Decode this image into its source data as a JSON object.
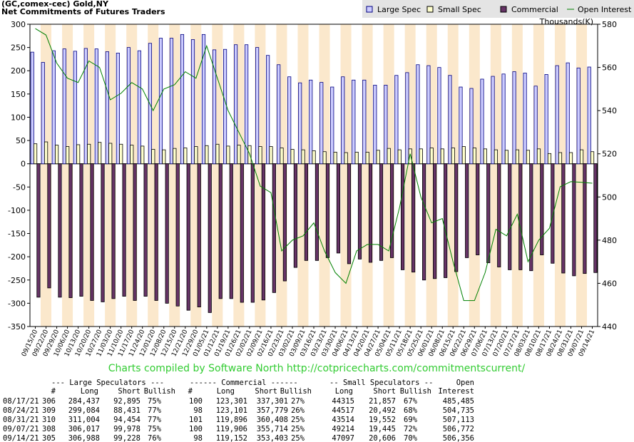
{
  "chart_data": {
    "type": "bar",
    "title": "(GC,comex-cec) Gold,NY",
    "subtitle": "Net Commitments of Futures Traders",
    "y2_label": "Thousands(K)",
    "footer": "Charts compiled by Software North  http://cotpricecharts.com/commitmentscurrent/",
    "categories": [
      "09/15/20",
      "09/22/20",
      "09/29/20",
      "10/06/20",
      "10/13/20",
      "10/20/20",
      "10/27/20",
      "11/03/20",
      "11/10/20",
      "11/17/20",
      "11/24/20",
      "12/01/20",
      "12/08/20",
      "12/15/20",
      "12/21/20",
      "12/29/20",
      "01/05/21",
      "01/12/21",
      "01/19/21",
      "01/26/21",
      "02/02/21",
      "02/09/21",
      "02/16/21",
      "02/23/21",
      "03/02/21",
      "03/09/21",
      "03/16/21",
      "03/23/21",
      "03/30/21",
      "04/06/21",
      "04/13/21",
      "04/20/21",
      "04/27/21",
      "05/04/21",
      "05/11/21",
      "05/18/21",
      "05/25/21",
      "06/01/21",
      "06/08/21",
      "06/15/21",
      "06/22/21",
      "06/29/21",
      "07/06/21",
      "07/13/21",
      "07/20/21",
      "07/27/21",
      "08/03/21",
      "08/10/21",
      "08/17/21",
      "08/24/21",
      "08/31/21",
      "09/07/21",
      "09/14/21"
    ],
    "series": [
      {
        "name": "Large Spec",
        "color": "#ccccff",
        "values": [
          240,
          218,
          243,
          247,
          242,
          248,
          247,
          241,
          238,
          250,
          243,
          259,
          270,
          270,
          278,
          267,
          278,
          245,
          246,
          256,
          256,
          250,
          233,
          213,
          187,
          174,
          180,
          175,
          165,
          187,
          180,
          180,
          169,
          169,
          190,
          196,
          213,
          211,
          207,
          190,
          165,
          162,
          182,
          188,
          193,
          198,
          195,
          167,
          192,
          211,
          217,
          206,
          208
        ]
      },
      {
        "name": "Small Spec",
        "color": "#ffffcc",
        "values": [
          43,
          47,
          40,
          37,
          41,
          42,
          46,
          44,
          42,
          40,
          38,
          31,
          30,
          33,
          34,
          37,
          39,
          42,
          38,
          40,
          39,
          37,
          37,
          34,
          31,
          30,
          28,
          26,
          25,
          24,
          25,
          25,
          29,
          33,
          30,
          32,
          32,
          34,
          32,
          34,
          37,
          34,
          32,
          30,
          29,
          30,
          29,
          32,
          22,
          24,
          24,
          30,
          26
        ]
      },
      {
        "name": "Commercial",
        "color": "#663366",
        "values": [
          -287,
          -267,
          -287,
          -288,
          -285,
          -294,
          -297,
          -290,
          -285,
          -294,
          -285,
          -294,
          -300,
          -306,
          -315,
          -308,
          -320,
          -290,
          -290,
          -298,
          -298,
          -293,
          -277,
          -252,
          -223,
          -208,
          -208,
          -202,
          -192,
          -215,
          -205,
          -212,
          -208,
          -202,
          -228,
          -233,
          -250,
          -247,
          -245,
          -232,
          -202,
          -196,
          -213,
          -222,
          -228,
          -228,
          -230,
          -196,
          -214,
          -235,
          -241,
          -236,
          -234
        ]
      },
      {
        "name": "Open Interest",
        "color": "#008000",
        "axis": "y2",
        "values": [
          578,
          575,
          562,
          555,
          553,
          563,
          560,
          545,
          548,
          553,
          550,
          540,
          550,
          552,
          558,
          555,
          570,
          555,
          540,
          530,
          520,
          505,
          502,
          475,
          480,
          482,
          488,
          475,
          465,
          460,
          475,
          478,
          478,
          475,
          495,
          520,
          500,
          488,
          490,
          470,
          452,
          452,
          465,
          485,
          482,
          492,
          470,
          480,
          485.485,
          504.735,
          507.113,
          506.772,
          506.356
        ]
      }
    ],
    "ylim": [
      -350,
      300
    ],
    "yticks": [
      300,
      250,
      200,
      150,
      100,
      50,
      0,
      -50,
      -100,
      -150,
      -200,
      -250,
      -300,
      -350
    ],
    "y2lim": [
      440,
      580
    ],
    "y2ticks": [
      440,
      460,
      480,
      500,
      520,
      540,
      560,
      580
    ],
    "band_color": "#fbe8cc"
  },
  "table": {
    "group_header": [
      "--- Large Speculators ---",
      "------ Commercial ------",
      "-- Small Speculators --",
      "Open"
    ],
    "header": [
      "#",
      "Long",
      "Short",
      "Bullish",
      "#",
      "Long",
      "Short",
      "Bullish",
      "Long",
      "Short",
      "Bullish",
      "Interest"
    ],
    "rows": [
      [
        "08/17/21",
        "306",
        "284,437",
        "92,895",
        "75%",
        "100",
        "123,301",
        "337,301",
        "27%",
        "44315",
        "21,857",
        "67%",
        "485,485"
      ],
      [
        "08/24/21",
        "309",
        "299,084",
        "88,431",
        "77%",
        "98",
        "123,101",
        "357,779",
        "26%",
        "44517",
        "20,492",
        "68%",
        "504,735"
      ],
      [
        "08/31/21",
        "310",
        "311,004",
        "94,454",
        "77%",
        "101",
        "119,896",
        "360,408",
        "25%",
        "43514",
        "19,552",
        "69%",
        "507,113"
      ],
      [
        "09/07/21",
        "308",
        "306,017",
        "99,978",
        "75%",
        "100",
        "119,906",
        "355,714",
        "25%",
        "49214",
        "19,445",
        "72%",
        "506,772"
      ],
      [
        "09/14/21",
        "305",
        "306,988",
        "99,228",
        "76%",
        "98",
        "119,152",
        "353,403",
        "25%",
        "47097",
        "20,606",
        "70%",
        "506,356"
      ]
    ]
  }
}
